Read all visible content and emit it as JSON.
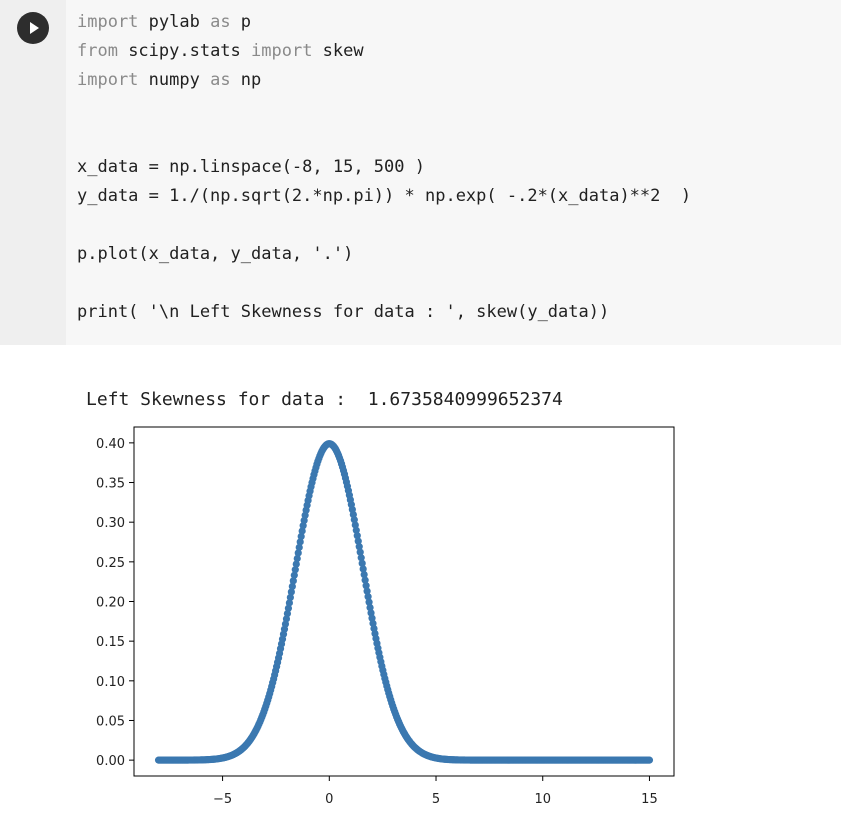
{
  "cell": {
    "run_icon": "play-icon",
    "code_lines": [
      [
        {
          "k": true,
          "t": "import"
        },
        {
          "k": false,
          "t": " pylab "
        },
        {
          "k": true,
          "t": "as"
        },
        {
          "k": false,
          "t": " p"
        }
      ],
      [
        {
          "k": true,
          "t": "from"
        },
        {
          "k": false,
          "t": " scipy.stats "
        },
        {
          "k": true,
          "t": "import"
        },
        {
          "k": false,
          "t": " skew"
        }
      ],
      [
        {
          "k": true,
          "t": "import"
        },
        {
          "k": false,
          "t": " numpy "
        },
        {
          "k": true,
          "t": "as"
        },
        {
          "k": false,
          "t": " np"
        }
      ],
      [],
      [],
      [
        {
          "k": false,
          "t": "x_data = np.linspace(-8, 15, 500 )"
        }
      ],
      [
        {
          "k": false,
          "t": "y_data = 1./(np.sqrt(2.*np.pi)) * np.exp( -.2*(x_data)**2  )"
        }
      ],
      [],
      [
        {
          "k": false,
          "t": "p.plot(x_data, y_data, '.')"
        }
      ],
      [],
      [
        {
          "k": false,
          "t": "print( '\\n Left Skewness for data : ', skew(y_data))"
        }
      ]
    ]
  },
  "output": {
    "printed": "Left Skewness for data :  1.6735840999652374"
  },
  "chart_data": {
    "type": "scatter",
    "title": "",
    "xlabel": "",
    "ylabel": "",
    "xlim": [
      -9.15,
      16.15
    ],
    "ylim": [
      -0.02,
      0.42
    ],
    "x_ticks": [
      "−5",
      "0",
      "5",
      "10",
      "15"
    ],
    "x_tick_values": [
      -5,
      0,
      5,
      10,
      15
    ],
    "y_ticks": [
      "0.00",
      "0.05",
      "0.10",
      "0.15",
      "0.20",
      "0.25",
      "0.30",
      "0.35",
      "0.40"
    ],
    "y_tick_values": [
      0,
      0.05,
      0.1,
      0.15,
      0.2,
      0.25,
      0.3,
      0.35,
      0.4
    ],
    "series": [
      {
        "marker": ".",
        "color": "#3b78b0",
        "x_range": [
          -8,
          15
        ],
        "n_points": 500,
        "formula": "1/sqrt(2*pi) * exp(-0.2*x^2)"
      }
    ],
    "grid": false
  }
}
